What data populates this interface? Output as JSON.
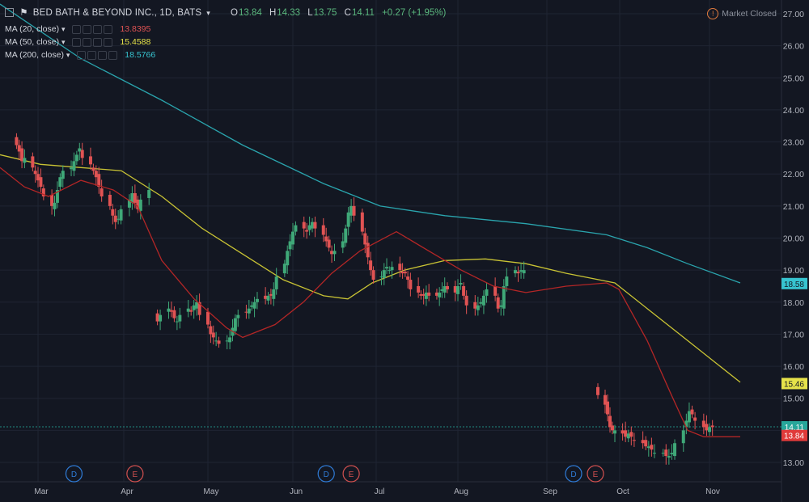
{
  "header": {
    "symbol": "BED BATH & BEYOND INC., 1D, BATS",
    "open_label": "O",
    "open": "13.84",
    "high_label": "H",
    "high": "14.33",
    "low_label": "L",
    "low": "13.75",
    "close_label": "C",
    "close": "14.11",
    "change": "+0.27 (+1.95%)",
    "status": "Market Closed"
  },
  "indicators": [
    {
      "label": "MA (20, close)",
      "value": "13.8395",
      "color": "#e05353"
    },
    {
      "label": "MA (50, close)",
      "value": "15.4588",
      "color": "#e6e24a"
    },
    {
      "label": "MA (200, close)",
      "value": "18.5766",
      "color": "#37c4d0"
    }
  ],
  "colors": {
    "background": "#131722",
    "grid": "#1f2433",
    "up": "#3fa878",
    "down": "#e05353",
    "ma20": "#b32626",
    "ma50": "#c9c334",
    "ma200": "#2aa4ad",
    "text": "#b2b5be"
  },
  "chart_data": {
    "type": "candlestick",
    "y_axis": {
      "min": 12.5,
      "max": 27.2,
      "ticks": [
        "13.00",
        "14.00",
        "15.00",
        "16.00",
        "17.00",
        "18.00",
        "19.00",
        "20.00",
        "21.00",
        "22.00",
        "23.00",
        "24.00",
        "25.00",
        "26.00",
        "27.00"
      ]
    },
    "x_labels": [
      "Mar",
      "Apr",
      "May",
      "Jun",
      "Jul",
      "Aug",
      "Sep",
      "Oct",
      "Nov"
    ],
    "price_labels": [
      {
        "text": "18.58",
        "value": 18.58,
        "color": "#37c4d0"
      },
      {
        "text": "15.46",
        "value": 15.46,
        "color": "#e6e24a"
      },
      {
        "text": "14.11",
        "value": 14.11,
        "color": "#26a69a"
      },
      {
        "text": "13.84",
        "value": 13.84,
        "color": "#e03a3a"
      }
    ],
    "last_close": 14.11,
    "events": [
      {
        "type": "D",
        "date": "2017-03-14"
      },
      {
        "type": "E",
        "date": "2017-04-05"
      },
      {
        "type": "D",
        "date": "2017-06-13"
      },
      {
        "type": "E",
        "date": "2017-06-22"
      },
      {
        "type": "D",
        "date": "2017-09-12"
      },
      {
        "type": "E",
        "date": "2017-09-21"
      }
    ],
    "segments": [
      {
        "start": "2017-02-21",
        "closes": [
          22.9,
          22.7,
          22.4,
          22.5,
          22.2,
          22.0,
          21.8,
          21.6,
          21.3,
          21.0,
          21.1,
          21.5,
          21.9,
          22.1,
          22.2,
          22.4,
          22.6,
          22.8,
          22.5,
          22.3,
          22.1,
          21.9,
          21.6,
          21.3,
          21.0,
          20.7,
          20.5,
          20.6,
          20.9,
          21.2,
          21.4,
          21.1,
          20.9,
          21.2,
          21.5
        ]
      },
      {
        "start": "2017-04-13",
        "closes": [
          17.4,
          17.6,
          17.8,
          17.7,
          17.5,
          17.4,
          17.6,
          17.8,
          17.7,
          17.9,
          18.0,
          17.6,
          17.3,
          17.0,
          16.9,
          16.8,
          16.7,
          16.8,
          16.9,
          17.2,
          17.5,
          17.6,
          17.7,
          17.8,
          17.9,
          18.0,
          18.1,
          18.1,
          18.2,
          18.2,
          18.4,
          18.8,
          19.2,
          19.6,
          19.9,
          20.2,
          20.4,
          20.3,
          20.2,
          20.4,
          20.5,
          20.3,
          20.1,
          19.9,
          19.7,
          19.5,
          19.6,
          19.9,
          20.3,
          20.8,
          21.0,
          20.7,
          20.2,
          19.8,
          19.4,
          19.0,
          18.7,
          18.8,
          19.0,
          19.1,
          19.0,
          19.1,
          19.0,
          18.9,
          18.9,
          18.7,
          18.4,
          18.3,
          18.2,
          18.2,
          18.3,
          18.2,
          18.2,
          18.3,
          18.4,
          18.5,
          18.4,
          18.3,
          18.5,
          18.6,
          18.2,
          17.9,
          17.8,
          17.9,
          18.0,
          18.2,
          18.4,
          18.2,
          17.8,
          17.9,
          18.5,
          18.8,
          19.0,
          18.9,
          19.0,
          19.0
        ]
      },
      {
        "start": "2017-09-22",
        "closes": [
          15.1,
          14.8,
          14.5,
          14.1,
          14.0,
          14.0,
          13.9,
          13.8,
          13.9,
          13.8,
          13.7,
          13.6,
          13.5,
          13.5,
          13.4,
          13.3,
          13.3,
          13.2,
          13.2,
          13.3,
          13.6,
          14.0,
          14.3,
          14.6,
          14.5,
          14.3,
          14.1,
          14.0,
          14.1,
          14.1
        ]
      }
    ],
    "ma20": [
      [
        0,
        22.2
      ],
      [
        30,
        21.6
      ],
      [
        60,
        21.3
      ],
      [
        100,
        21.8
      ],
      [
        140,
        21.5
      ],
      [
        170,
        21.0
      ],
      [
        200,
        19.3
      ],
      [
        240,
        18.1
      ],
      [
        280,
        17.2
      ],
      [
        300,
        16.9
      ],
      [
        340,
        17.3
      ],
      [
        375,
        18.0
      ],
      [
        410,
        18.9
      ],
      [
        445,
        19.6
      ],
      [
        490,
        20.2
      ],
      [
        530,
        19.6
      ],
      [
        570,
        19.0
      ],
      [
        610,
        18.5
      ],
      [
        650,
        18.3
      ],
      [
        700,
        18.5
      ],
      [
        750,
        18.6
      ],
      [
        765,
        18.4
      ],
      [
        800,
        16.8
      ],
      [
        830,
        15.1
      ],
      [
        850,
        14.0
      ],
      [
        870,
        13.8
      ],
      [
        915,
        13.8
      ]
    ],
    "ma50": [
      [
        0,
        22.6
      ],
      [
        50,
        22.3
      ],
      [
        100,
        22.2
      ],
      [
        150,
        22.1
      ],
      [
        200,
        21.3
      ],
      [
        250,
        20.3
      ],
      [
        300,
        19.5
      ],
      [
        350,
        18.7
      ],
      [
        400,
        18.2
      ],
      [
        430,
        18.1
      ],
      [
        460,
        18.6
      ],
      [
        500,
        19.0
      ],
      [
        550,
        19.3
      ],
      [
        600,
        19.35
      ],
      [
        650,
        19.2
      ],
      [
        700,
        18.9
      ],
      [
        740,
        18.7
      ],
      [
        760,
        18.6
      ],
      [
        800,
        17.8
      ],
      [
        840,
        17.0
      ],
      [
        880,
        16.2
      ],
      [
        915,
        15.5
      ]
    ],
    "ma200": [
      [
        0,
        27.3
      ],
      [
        100,
        25.6
      ],
      [
        200,
        24.3
      ],
      [
        300,
        22.9
      ],
      [
        400,
        21.7
      ],
      [
        470,
        21.0
      ],
      [
        550,
        20.7
      ],
      [
        650,
        20.45
      ],
      [
        750,
        20.1
      ],
      [
        800,
        19.7
      ],
      [
        850,
        19.2
      ],
      [
        915,
        18.6
      ]
    ]
  }
}
